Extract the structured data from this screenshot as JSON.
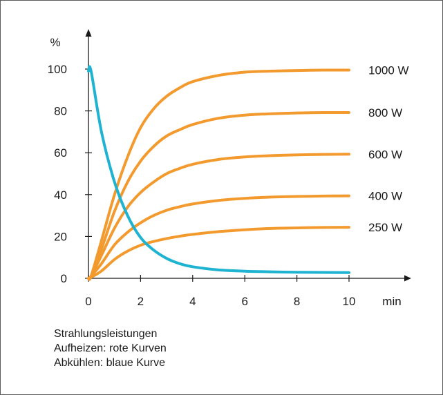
{
  "chart_data": {
    "type": "line",
    "ylabel": "%",
    "xlabel": "min",
    "xlim": [
      0,
      10
    ],
    "ylim": [
      0,
      100
    ],
    "x_ticks": [
      0,
      2,
      4,
      6,
      8,
      10
    ],
    "y_ticks": [
      0,
      20,
      40,
      60,
      80,
      100
    ],
    "grid": false,
    "x": [
      0,
      0.1,
      0.5,
      1,
      1.5,
      2,
      2.5,
      3,
      3.5,
      4,
      5,
      6,
      7,
      8,
      9,
      10
    ],
    "series": [
      {
        "name": "1000 W",
        "color": "#f39a2e",
        "group": "heating",
        "values": [
          0,
          1,
          18,
          40,
          58,
          72,
          81,
          87,
          91,
          94,
          97,
          98.5,
          99,
          99.3,
          99.5,
          99.5
        ]
      },
      {
        "name": "800 W",
        "color": "#f39a2e",
        "group": "heating",
        "values": [
          0,
          1,
          14,
          32,
          46,
          56,
          63,
          68,
          71,
          73.5,
          76.5,
          78,
          78.6,
          79,
          79.2,
          79.2
        ]
      },
      {
        "name": "600 W",
        "color": "#f39a2e",
        "group": "heating",
        "values": [
          0,
          1,
          11,
          24,
          34,
          41,
          46,
          50,
          52.5,
          54.5,
          56.8,
          58,
          58.6,
          59,
          59.2,
          59.3
        ]
      },
      {
        "name": "400 W",
        "color": "#f39a2e",
        "group": "heating",
        "values": [
          0,
          1,
          7,
          16,
          22,
          26.5,
          30,
          32.5,
          34.2,
          35.5,
          37.2,
          38.2,
          38.8,
          39.1,
          39.3,
          39.4
        ]
      },
      {
        "name": "250 W",
        "color": "#f39a2e",
        "group": "heating",
        "values": [
          0,
          0.5,
          3.5,
          9,
          13,
          15.8,
          17.6,
          19,
          20.1,
          21,
          22.3,
          23.2,
          23.8,
          24.1,
          24.3,
          24.4
        ]
      },
      {
        "name": "",
        "color": "#1fb3d2",
        "group": "cooling",
        "values": [
          99,
          99,
          70,
          46,
          30,
          19.5,
          13.5,
          9.5,
          7,
          5.5,
          4,
          3.4,
          3.1,
          2.9,
          2.8,
          2.7
        ]
      }
    ]
  },
  "note": {
    "line1": "Strahlungsleistungen",
    "line2": "Aufheizen: rote Kurven",
    "line3": "Abkühlen: blaue Kurve"
  }
}
